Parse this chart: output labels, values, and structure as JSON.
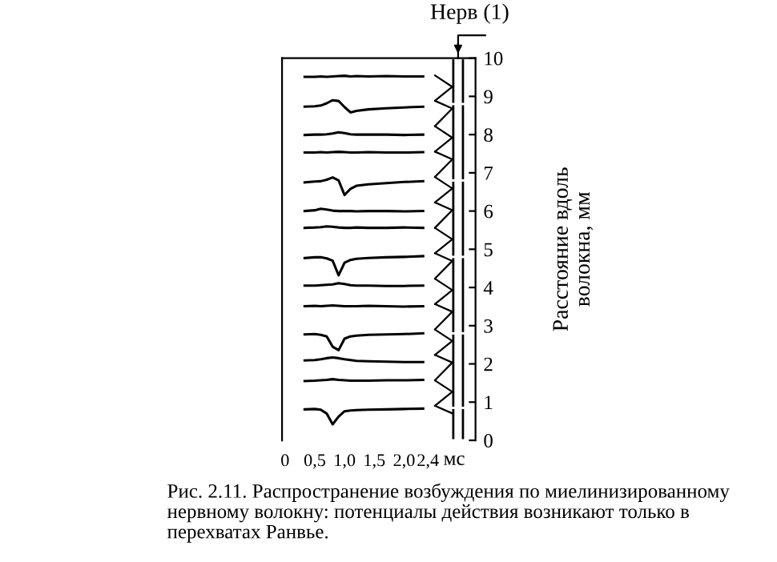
{
  "chart_data": {
    "type": "line",
    "xlabel": "мс",
    "ylabel": "Расстояние вдоль\nволокна, мм",
    "annotations": [
      "Нерв (1)",
      "Рис. 2.11. Распространение возбуждения по миелинизированному нервному волокну: потенциалы действия возникают только в перехватах Ранвье."
    ],
    "x": [
      0.33,
      0.5,
      0.6,
      0.7,
      0.8,
      0.9,
      1.0,
      1.1,
      1.2,
      1.4,
      1.7,
      2.0,
      2.32
    ],
    "series": [
      {
        "color": "#000000",
        "values": [
          9.51,
          9.51,
          9.52,
          9.51,
          9.52,
          9.53,
          9.54,
          9.52,
          9.53,
          9.52,
          9.53,
          9.52,
          9.52
        ]
      },
      {
        "color": "#000000",
        "values": [
          8.73,
          8.74,
          8.76,
          8.82,
          8.9,
          8.88,
          8.72,
          8.58,
          8.62,
          8.66,
          8.69,
          8.71,
          8.73
        ]
      },
      {
        "color": "#000000",
        "values": [
          7.99,
          8.0,
          8.0,
          8.01,
          8.03,
          8.06,
          8.04,
          8.01,
          8.0,
          8.0,
          8.0,
          7.99,
          8.0
        ]
      },
      {
        "color": "#000000",
        "values": [
          7.53,
          7.53,
          7.54,
          7.53,
          7.54,
          7.55,
          7.54,
          7.53,
          7.53,
          7.54,
          7.53,
          7.53,
          7.54
        ]
      },
      {
        "color": "#000000",
        "values": [
          6.75,
          6.77,
          6.78,
          6.82,
          6.88,
          6.8,
          6.42,
          6.58,
          6.66,
          6.7,
          6.73,
          6.76,
          6.78
        ]
      },
      {
        "color": "#000000",
        "values": [
          6.0,
          6.02,
          6.06,
          6.04,
          6.01,
          6.0,
          6.0,
          6.0,
          5.99,
          6.0,
          6.0,
          5.99,
          6.0
        ]
      },
      {
        "color": "#000000",
        "values": [
          5.56,
          5.57,
          5.58,
          5.6,
          5.59,
          5.57,
          5.56,
          5.56,
          5.57,
          5.56,
          5.56,
          5.57,
          5.56
        ]
      },
      {
        "color": "#000000",
        "values": [
          4.77,
          4.79,
          4.79,
          4.76,
          4.7,
          4.32,
          4.65,
          4.72,
          4.75,
          4.77,
          4.79,
          4.8,
          4.82
        ]
      },
      {
        "color": "#000000",
        "values": [
          4.05,
          4.05,
          4.06,
          4.07,
          4.08,
          4.11,
          4.09,
          4.06,
          4.05,
          4.05,
          4.04,
          4.04,
          4.05
        ]
      },
      {
        "color": "#000000",
        "values": [
          3.51,
          3.52,
          3.51,
          3.52,
          3.53,
          3.52,
          3.51,
          3.51,
          3.51,
          3.52,
          3.51,
          3.5,
          3.51
        ]
      },
      {
        "color": "#000000",
        "values": [
          2.77,
          2.78,
          2.76,
          2.72,
          2.45,
          2.36,
          2.66,
          2.72,
          2.74,
          2.76,
          2.77,
          2.78,
          2.8
        ]
      },
      {
        "color": "#000000",
        "values": [
          2.09,
          2.1,
          2.12,
          2.15,
          2.17,
          2.15,
          2.12,
          2.1,
          2.08,
          2.07,
          2.06,
          2.05,
          2.05
        ]
      },
      {
        "color": "#000000",
        "values": [
          1.55,
          1.56,
          1.57,
          1.58,
          1.6,
          1.58,
          1.57,
          1.56,
          1.56,
          1.56,
          1.57,
          1.57,
          1.58
        ]
      },
      {
        "color": "#000000",
        "values": [
          0.81,
          0.82,
          0.8,
          0.7,
          0.42,
          0.62,
          0.76,
          0.78,
          0.79,
          0.8,
          0.81,
          0.82,
          0.83
        ]
      }
    ],
    "xlim": [
      -0.05,
      3.2
    ],
    "ylim": [
      0,
      10
    ],
    "xticks": [
      0,
      {
        "value": 0.5,
        "label": "0,5"
      },
      {
        "value": 1.0,
        "label": "1,0"
      },
      {
        "value": 1.5,
        "label": "1,5"
      },
      {
        "value": 2.0,
        "label": "2,0"
      },
      {
        "value": 2.4,
        "label": "2,4"
      }
    ],
    "yticks": [
      0,
      1,
      2,
      3,
      4,
      5,
      6,
      7,
      8,
      9,
      10
    ],
    "grid": false,
    "legend": false,
    "marker": "none",
    "line_style": "solid"
  }
}
